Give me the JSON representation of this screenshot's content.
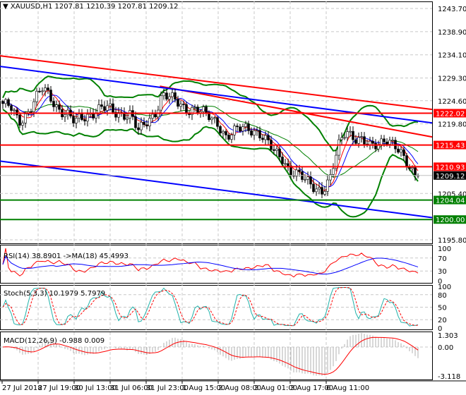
{
  "header": {
    "symbol": "XAUUSD,H1",
    "ohlc": "1207.81 1210.39 1207.81 1209.12"
  },
  "chart_data": [
    {
      "type": "candlestick",
      "title": "XAUUSD,H1",
      "ylim": [
        1195.8,
        1243.7
      ],
      "y_ticks": [
        "1243.70",
        "1238.90",
        "1234.10",
        "1229.30",
        "1224.60",
        "1219.80",
        "1205.40",
        "1195.80"
      ],
      "x_ticks": [
        "27 Jul 2018",
        "27 Jul 19:00",
        "30 Jul 13:00",
        "31 Jul 06:00",
        "31 Jul 23:00",
        "1 Aug 15:00",
        "2 Aug 08:00",
        "3 Aug 01:00",
        "3 Aug 17:00",
        "6 Aug 11:00"
      ],
      "close_path": [
        1224,
        1223,
        1220,
        1222,
        1225,
        1227,
        1225,
        1223,
        1222,
        1220,
        1221,
        1222,
        1223,
        1223,
        1222,
        1222,
        1222,
        1218,
        1220,
        1222,
        1226,
        1225,
        1224,
        1223,
        1223,
        1222,
        1221,
        1220,
        1217,
        1218,
        1219,
        1219,
        1218,
        1216,
        1214,
        1213,
        1210,
        1209,
        1208,
        1207,
        1206,
        1208,
        1215,
        1219,
        1217,
        1216,
        1215,
        1216,
        1217,
        1215,
        1213,
        1211,
        1209
      ],
      "last_price": {
        "value": "1209.12",
        "color": "#000000"
      },
      "levels": [
        {
          "value": "1222.02",
          "color": "#ff0000"
        },
        {
          "value": "1215.43",
          "color": "#ff0000"
        },
        {
          "value": "1210.93",
          "color": "#ff0000"
        },
        {
          "value": "1204.04",
          "color": "#008000"
        },
        {
          "value": "1200.00",
          "color": "#008000"
        }
      ],
      "trendlines": [
        {
          "color": "#ff0000",
          "from": [
            0,
            1233.9
          ],
          "to": [
            1,
            1222.8
          ]
        },
        {
          "color": "#ff0000",
          "from": [
            0.37,
            1227.6
          ],
          "to": [
            1,
            1217.1
          ]
        },
        {
          "color": "#0000ff",
          "from": [
            0,
            1231.7
          ],
          "to": [
            1,
            1220.0
          ]
        },
        {
          "color": "#0000ff",
          "from": [
            0,
            1212.1
          ],
          "to": [
            1,
            1200.4
          ]
        }
      ]
    },
    {
      "type": "line",
      "title": "RSI(14) 38.8901  ->MA(18) 45.4993",
      "ylim": [
        0,
        100
      ],
      "y_ticks": [
        "100",
        "70",
        "30",
        "0"
      ]
    },
    {
      "type": "line",
      "title": "Stoch(5,3,3) 10.1979 5.7979",
      "ylim": [
        0,
        100
      ],
      "y_ticks": [
        "100",
        "80",
        "50",
        "20",
        "0"
      ]
    },
    {
      "type": "histogram",
      "title": "MACD(12,26,9) -0.988 0.009",
      "ylim": [
        -3.118,
        1.303
      ],
      "y_ticks": [
        "1.303",
        "0.00",
        "-3.118"
      ]
    }
  ]
}
